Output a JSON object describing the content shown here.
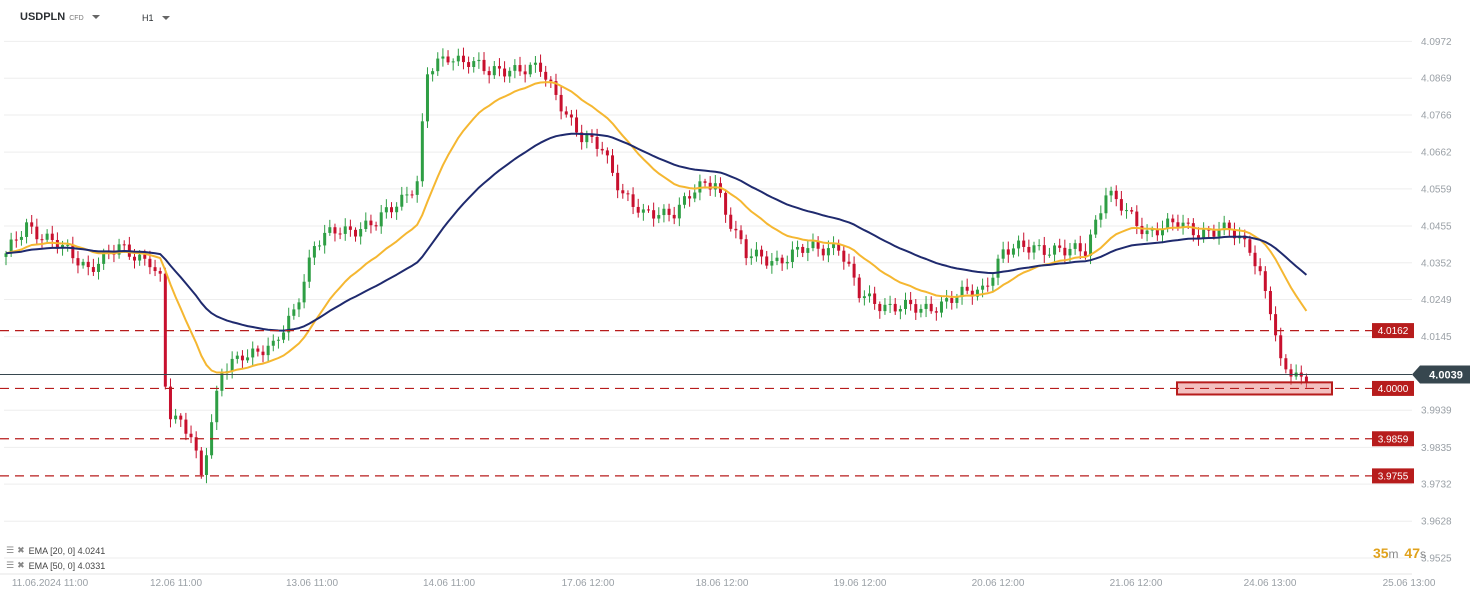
{
  "header": {
    "symbol": "USDPLN",
    "instrument_type": "CFD",
    "timeframe": "H1"
  },
  "indicators": [
    {
      "label": "EMA [20, 0]",
      "value": "4.0241",
      "color": "#f5b731"
    },
    {
      "label": "EMA [50, 0]",
      "value": "4.0331",
      "color": "#1f2a6e"
    }
  ],
  "timer": {
    "minutes": "35",
    "m_unit": "m",
    "seconds": "47",
    "s_unit": "s"
  },
  "chart_data": {
    "type": "candlestick",
    "y_ticks": [
      "4.0972",
      "4.0869",
      "4.0766",
      "4.0662",
      "4.0559",
      "4.0455",
      "4.0352",
      "4.0249",
      "4.0145",
      "3.9939",
      "3.9835",
      "3.9732",
      "3.9628",
      "3.9525"
    ],
    "ylim": [
      3.9525,
      4.1032
    ],
    "x_ticks": [
      "11.06.2024 11:00",
      "12.06 11:00",
      "13.06 11:00",
      "14.06 11:00",
      "17.06 12:00",
      "18.06 12:00",
      "19.06 12:00",
      "20.06 12:00",
      "21.06 12:00",
      "24.06 13:00",
      "25.06 13:00"
    ],
    "current_price": "4.0039",
    "levels": [
      {
        "value": 4.0162,
        "label": "4.0162"
      },
      {
        "value": 4.0,
        "label": "4.0000"
      },
      {
        "value": 3.9859,
        "label": "3.9859"
      },
      {
        "value": 3.9755,
        "label": "3.9755"
      }
    ],
    "highlight_zone": {
      "from": 3.9983,
      "to": 4.0017
    },
    "colors": {
      "up": "#2e9e44",
      "down": "#c8102e",
      "level": "#b71c1c",
      "current": "#37474f",
      "grid": "#eeeeee"
    },
    "series": [
      {
        "name": "USDPLN",
        "kind": "ohlc",
        "keypoints": [
          [
            0,
            4.037
          ],
          [
            4,
            4.046
          ],
          [
            10,
            4.04
          ],
          [
            16,
            4.034
          ],
          [
            22,
            4.039
          ],
          [
            28,
            4.036
          ],
          [
            30,
            4.03
          ],
          [
            31,
            4.0
          ],
          [
            32,
            3.992
          ],
          [
            36,
            3.988
          ],
          [
            38,
            3.976
          ],
          [
            40,
            3.99
          ],
          [
            42,
            4.004
          ],
          [
            46,
            4.01
          ],
          [
            52,
            4.011
          ],
          [
            56,
            4.022
          ],
          [
            60,
            4.04
          ],
          [
            64,
            4.044
          ],
          [
            72,
            4.046
          ],
          [
            80,
            4.058
          ],
          [
            82,
            4.088
          ],
          [
            86,
            4.093
          ],
          [
            90,
            4.092
          ],
          [
            94,
            4.088
          ],
          [
            98,
            4.09
          ],
          [
            104,
            4.089
          ],
          [
            108,
            4.08
          ],
          [
            112,
            4.07
          ],
          [
            116,
            4.067
          ],
          [
            120,
            4.055
          ],
          [
            124,
            4.048
          ],
          [
            130,
            4.05
          ],
          [
            134,
            4.055
          ],
          [
            138,
            4.058
          ],
          [
            140,
            4.05
          ],
          [
            144,
            4.037
          ],
          [
            150,
            4.036
          ],
          [
            156,
            4.039
          ],
          [
            162,
            4.04
          ],
          [
            166,
            4.026
          ],
          [
            172,
            4.023
          ],
          [
            178,
            4.022
          ],
          [
            184,
            4.025
          ],
          [
            190,
            4.028
          ],
          [
            194,
            4.038
          ],
          [
            200,
            4.04
          ],
          [
            206,
            4.038
          ],
          [
            210,
            4.039
          ],
          [
            214,
            4.055
          ],
          [
            218,
            4.049
          ],
          [
            222,
            4.044
          ],
          [
            228,
            4.046
          ],
          [
            232,
            4.044
          ],
          [
            238,
            4.044
          ],
          [
            242,
            4.04
          ],
          [
            244,
            4.032
          ],
          [
            246,
            4.022
          ],
          [
            248,
            4.006
          ],
          [
            252,
            4.003
          ],
          [
            253,
            4.004
          ]
        ]
      },
      {
        "name": "EMA [20, 0]",
        "kind": "ema",
        "period": 20
      },
      {
        "name": "EMA [50, 0]",
        "kind": "ema",
        "period": 50
      }
    ]
  }
}
